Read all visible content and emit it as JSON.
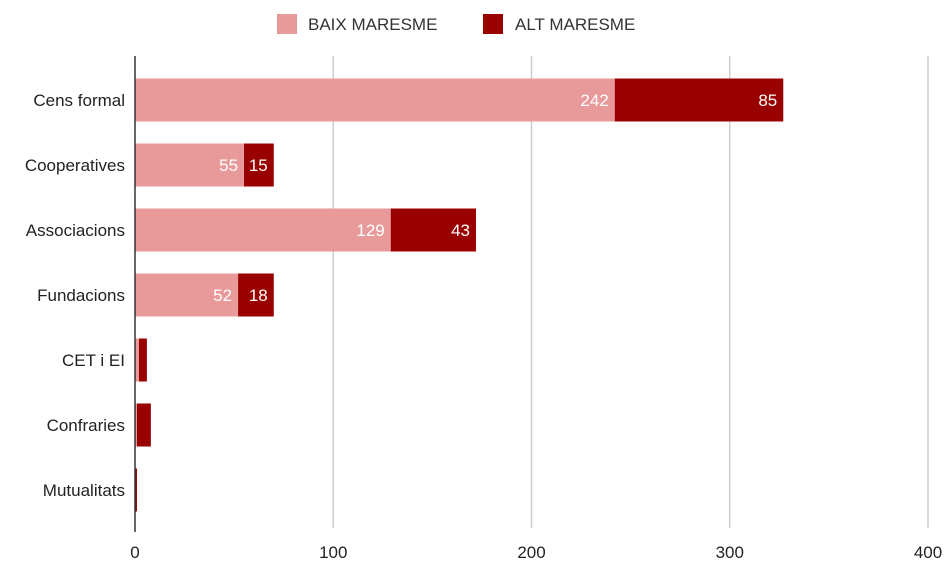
{
  "chart_data": {
    "type": "bar",
    "orientation": "horizontal",
    "stacked": true,
    "title": "",
    "xlabel": "",
    "ylabel": "",
    "categories": [
      "Cens formal",
      "Cooperatives",
      "Associacions",
      "Fundacions",
      "CET i EI",
      "Confraries",
      "Mutualitats"
    ],
    "series": [
      {
        "name": "BAIX MARESME",
        "color": "#e89a9a",
        "label_color": "#ffffff",
        "values": [
          242,
          55,
          129,
          52,
          2,
          1,
          0
        ],
        "labels": [
          "242",
          "55",
          "129",
          "52",
          "",
          "",
          ""
        ]
      },
      {
        "name": "ALT MARESME",
        "color": "#990000",
        "label_color": "#ffffff",
        "values": [
          85,
          15,
          43,
          18,
          4,
          7,
          1
        ],
        "labels": [
          "85",
          "15",
          "43",
          "18",
          "",
          "",
          ""
        ]
      }
    ],
    "xlim": [
      0,
      400
    ],
    "xticks": [
      0,
      100,
      200,
      300,
      400
    ],
    "grid": true,
    "legend_position": "top"
  }
}
